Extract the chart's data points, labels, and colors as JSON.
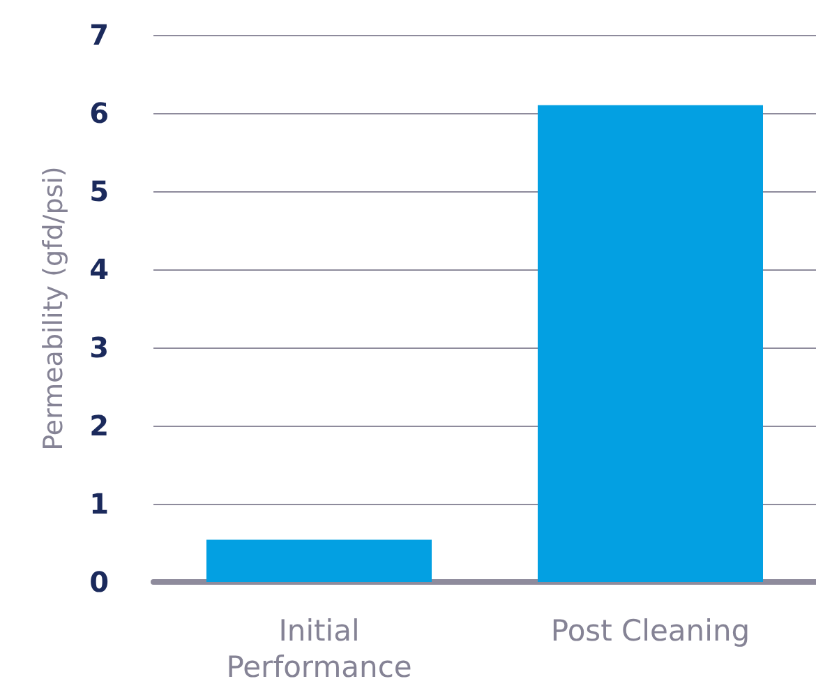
{
  "chart_data": {
    "type": "bar",
    "ylabel": "Permeability (gfd/psi)",
    "categories": [
      "Initial\nPerformance",
      "Post Cleaning"
    ],
    "values": [
      0.54,
      6.1
    ],
    "color": "#03a0e2",
    "ylim": [
      0,
      7
    ],
    "yticks": [
      0,
      1,
      2,
      3,
      4,
      5,
      6,
      7
    ],
    "grid": "y"
  }
}
